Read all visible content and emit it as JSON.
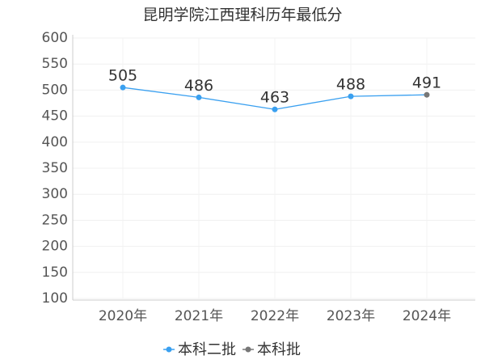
{
  "chart_data": {
    "type": "line",
    "title": "昆明学院江西理科历年最低分",
    "categories": [
      "2020年",
      "2021年",
      "2022年",
      "2023年",
      "2024年"
    ],
    "series": [
      {
        "name": "本科二批",
        "color": "#3aa0f0",
        "values": [
          505,
          486,
          463,
          488,
          null
        ]
      },
      {
        "name": "本科批",
        "color": "#777777",
        "values": [
          null,
          null,
          null,
          null,
          491
        ]
      }
    ],
    "ylim": [
      100,
      600
    ],
    "yticks": [
      100,
      150,
      200,
      250,
      300,
      350,
      400,
      450,
      500,
      550,
      600
    ],
    "grid": true
  }
}
